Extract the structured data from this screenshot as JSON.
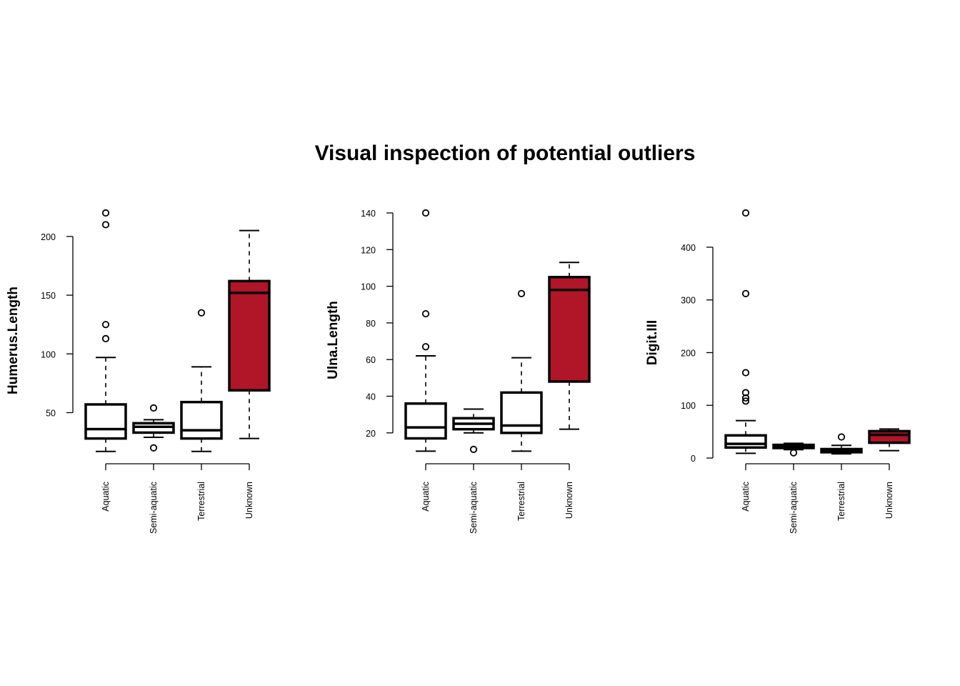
{
  "title": "Visual inspection of potential outliers",
  "chart_data": [
    {
      "type": "boxplot",
      "ylabel": "Humerus.Length",
      "categories": [
        "Aquatic",
        "Semi-aquatic",
        "Terrestrial",
        "Unknown"
      ],
      "yticks": [
        50,
        100,
        150,
        200
      ],
      "ylim": [
        15,
        220
      ],
      "boxes": [
        {
          "lower_whisker": 17,
          "q1": 28,
          "median": 36,
          "q3": 57,
          "upper_whisker": 97,
          "outliers": [
            113,
            125,
            210,
            220
          ],
          "color": "#ffffff"
        },
        {
          "lower_whisker": 29,
          "q1": 33,
          "median": 38,
          "q3": 41,
          "upper_whisker": 44,
          "outliers": [
            20,
            54
          ],
          "color": "#ffffff"
        },
        {
          "lower_whisker": 17,
          "q1": 28,
          "median": 35,
          "q3": 59,
          "upper_whisker": 89,
          "outliers": [
            135
          ],
          "color": "#ffffff"
        },
        {
          "lower_whisker": 28,
          "q1": 69,
          "median": 152,
          "q3": 162,
          "upper_whisker": 205,
          "outliers": [],
          "color": "#b01528"
        }
      ]
    },
    {
      "type": "boxplot",
      "ylabel": "Ulna.Length",
      "categories": [
        "Aquatic",
        "Semi-aquatic",
        "Terrestrial",
        "Unknown"
      ],
      "yticks": [
        20,
        40,
        60,
        80,
        100,
        120,
        140
      ],
      "ylim": [
        9,
        140
      ],
      "boxes": [
        {
          "lower_whisker": 10,
          "q1": 17,
          "median": 23,
          "q3": 36,
          "upper_whisker": 62,
          "outliers": [
            67,
            85,
            140
          ],
          "color": "#ffffff"
        },
        {
          "lower_whisker": 20,
          "q1": 22,
          "median": 25,
          "q3": 28,
          "upper_whisker": 33,
          "outliers": [
            11
          ],
          "color": "#ffffff"
        },
        {
          "lower_whisker": 10,
          "q1": 20,
          "median": 24,
          "q3": 42,
          "upper_whisker": 61,
          "outliers": [
            96
          ],
          "color": "#ffffff"
        },
        {
          "lower_whisker": 22,
          "q1": 48,
          "median": 98,
          "q3": 105,
          "upper_whisker": 113,
          "outliers": [],
          "color": "#b01528"
        }
      ]
    },
    {
      "type": "boxplot",
      "ylabel": "Digit.III",
      "categories": [
        "Aquatic",
        "Semi-aquatic",
        "Terrestrial",
        "Unknown"
      ],
      "yticks": [
        0,
        100,
        200,
        300,
        400
      ],
      "ylim": [
        0,
        465
      ],
      "boxes": [
        {
          "lower_whisker": 9,
          "q1": 20,
          "median": 27,
          "q3": 43,
          "upper_whisker": 71,
          "outliers": [
            108,
            114,
            124,
            162,
            312,
            465
          ],
          "color": "#ffffff"
        },
        {
          "lower_whisker": 16,
          "q1": 19,
          "median": 22,
          "q3": 25,
          "upper_whisker": 28,
          "outliers": [
            10
          ],
          "color": "#ffffff"
        },
        {
          "lower_whisker": 8,
          "q1": 11,
          "median": 13,
          "q3": 17,
          "upper_whisker": 24,
          "outliers": [
            40
          ],
          "color": "#ffffff"
        },
        {
          "lower_whisker": 14,
          "q1": 29,
          "median": 44,
          "q3": 51,
          "upper_whisker": 55,
          "outliers": [],
          "color": "#b01528"
        }
      ]
    }
  ]
}
